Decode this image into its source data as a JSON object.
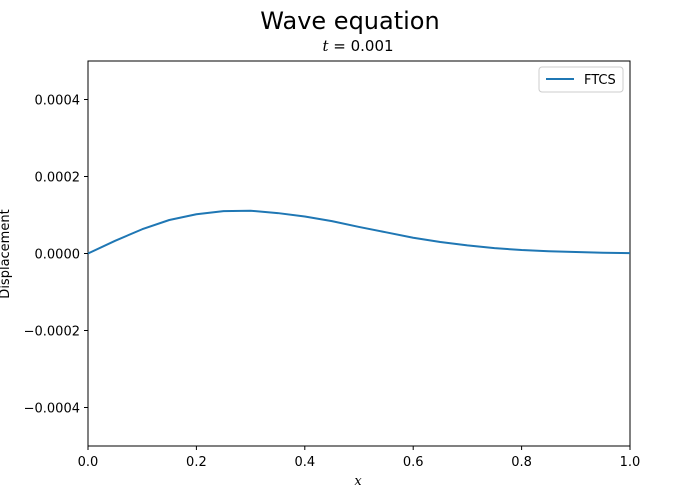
{
  "chart_data": {
    "type": "line",
    "title": "Wave equation",
    "subtitle": {
      "var": "t",
      "eq": " = ",
      "value": "0.001"
    },
    "xlabel": "x",
    "ylabel": "Displacement",
    "xlim": [
      0.0,
      1.0
    ],
    "ylim": [
      -0.0005,
      0.0005
    ],
    "x_ticks": [
      0.0,
      0.2,
      0.4,
      0.6,
      0.8,
      1.0
    ],
    "x_tick_labels": [
      "0.0",
      "0.2",
      "0.4",
      "0.6",
      "0.8",
      "1.0"
    ],
    "y_ticks": [
      -0.0004,
      -0.0002,
      0.0,
      0.0002,
      0.0004
    ],
    "y_tick_labels": [
      "−0.0004",
      "−0.0002",
      "0.0000",
      "0.0002",
      "0.0004"
    ],
    "grid": false,
    "legend_position": "top-right",
    "series": [
      {
        "name": "FTCS",
        "color": "#1f77b4",
        "x": [
          0.0,
          0.05,
          0.1,
          0.15,
          0.2,
          0.25,
          0.3,
          0.35,
          0.4,
          0.45,
          0.5,
          0.55,
          0.6,
          0.65,
          0.7,
          0.75,
          0.8,
          0.85,
          0.9,
          0.95,
          1.0
        ],
        "y": [
          0.0,
          3.3e-05,
          6.3e-05,
          8.7e-05,
          0.000102,
          0.00011,
          0.000111,
          0.000105,
          9.6e-05,
          8.4e-05,
          6.9e-05,
          5.5e-05,
          4.1e-05,
          3e-05,
          2.1e-05,
          1.4e-05,
          9e-06,
          6e-06,
          4e-06,
          2e-06,
          1e-06
        ]
      }
    ]
  }
}
